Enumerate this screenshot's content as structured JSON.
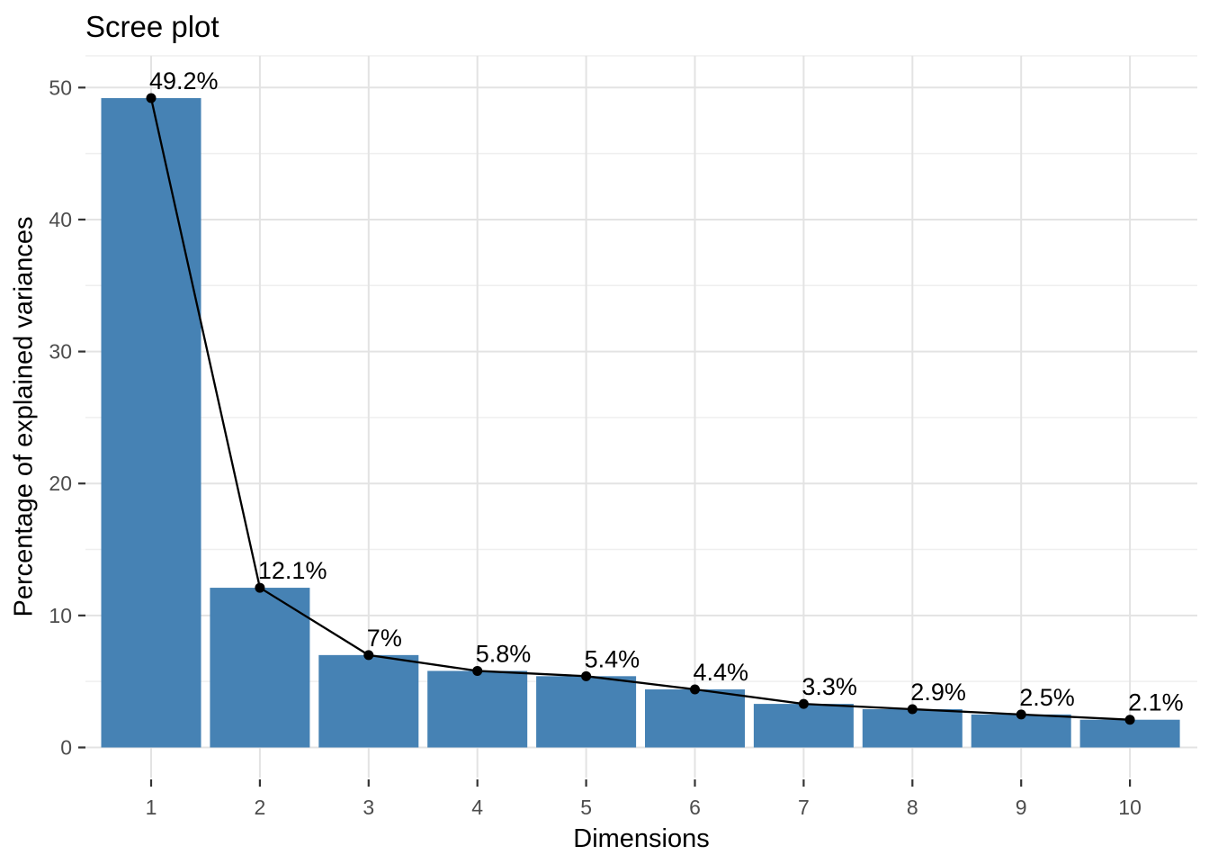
{
  "chart_data": {
    "type": "bar",
    "overlay": "line",
    "title": "Scree plot",
    "xlabel": "Dimensions",
    "ylabel": "Percentage of explained variances",
    "categories": [
      1,
      2,
      3,
      4,
      5,
      6,
      7,
      8,
      9,
      10
    ],
    "values": [
      49.2,
      12.1,
      7,
      5.8,
      5.4,
      4.4,
      3.3,
      2.9,
      2.5,
      2.1
    ],
    "point_labels": [
      "49.2%",
      "12.1%",
      "7%",
      "5.8%",
      "5.4%",
      "4.4%",
      "3.3%",
      "2.9%",
      "2.5%",
      "2.1%"
    ],
    "ylim": [
      0,
      50
    ],
    "yticks": [
      0,
      10,
      20,
      30,
      40,
      50
    ],
    "yticks_minor": [
      5,
      15,
      25,
      35,
      45
    ],
    "grid": "horizontal major+minor, vertical major at each dimension",
    "legend": "none",
    "colors": {
      "bar_fill": "#4682B4",
      "line": "#000000",
      "point": "#000000",
      "label_text": "#000000",
      "axis_text": "#4D4D4D",
      "title_text": "#000000",
      "grid_major": "#E3E3E3",
      "grid_minor": "#EFEFEF",
      "tick_mark": "#333333",
      "background": "#FFFFFF"
    }
  }
}
